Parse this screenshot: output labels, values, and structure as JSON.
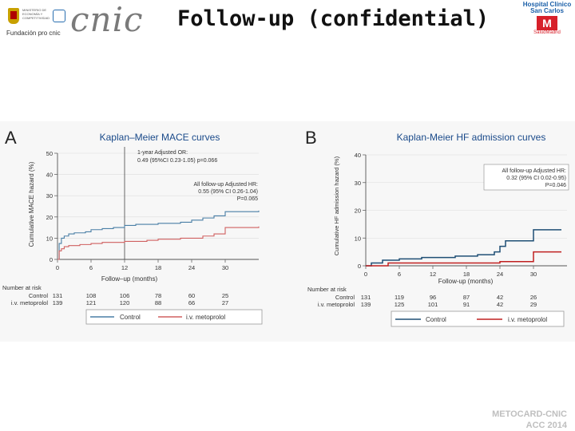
{
  "header": {
    "title": "Follow-up (confidential)",
    "cnic_logo": "cnic",
    "fundacion": "Fundación pro cnic",
    "ministerio": "MINISTERIO DE ECONOMÍA Y COMPETITIVIDAD",
    "hospital_line1": "Hospital Clínico",
    "hospital_line2": "San Carlos",
    "hospital_sub": "SaludMadrid"
  },
  "footer": {
    "line1": "METOCARD-CNIC",
    "line2": "ACC 2014"
  },
  "colors": {
    "control_A": "#4a7fa6",
    "metoprolol_A": "#d06060",
    "control_B": "#1f4f75",
    "metoprolol_B": "#c02020",
    "title_blue": "#1a4a8a",
    "grid": "#dcdcdc"
  },
  "chart_data": [
    {
      "type": "line",
      "panel_letter": "A",
      "title": "Kaplan–Meier MACE curves",
      "xlabel": "Follow–up (months)",
      "ylabel": "Cumulative MACE hazard (%)",
      "xlim": [
        0,
        36
      ],
      "ylim": [
        0,
        50
      ],
      "xticks": [
        0,
        6,
        12,
        18,
        24,
        30
      ],
      "yticks": [
        0,
        10,
        20,
        30,
        40,
        50
      ],
      "series": [
        {
          "name": "Control",
          "x": [
            0,
            0.3,
            0.7,
            1.2,
            2,
            3,
            5,
            6,
            8,
            10,
            12,
            14,
            18,
            22,
            24,
            26,
            28,
            30,
            36
          ],
          "y": [
            0,
            7.5,
            10,
            11,
            12,
            12.5,
            13,
            14,
            14.5,
            15,
            16,
            16.5,
            17,
            17.5,
            18.5,
            19.5,
            20.5,
            22.5,
            23
          ]
        },
        {
          "name": "i.v. metoprolol",
          "x": [
            0,
            0.3,
            0.7,
            1.2,
            2,
            4,
            6,
            8,
            12,
            16,
            18,
            22,
            26,
            28,
            30,
            36
          ],
          "y": [
            0,
            4,
            5,
            6,
            6.5,
            7,
            7.5,
            8,
            8.5,
            9,
            9.5,
            10,
            11,
            12,
            15,
            15.5
          ]
        }
      ],
      "annotations": [
        {
          "lines": [
            "1-year Adjusted OR:",
            "0.49 (95%CI 0.23-1.05) p=0.066"
          ]
        },
        {
          "lines": [
            "All follow-up Adjusted HR:",
            "0.55 (95% CI 0.26-1.04)",
            "P=0.065"
          ]
        }
      ],
      "vline_x": 12,
      "risk_table": {
        "header": "Number at risk",
        "rows": [
          {
            "label": "Control",
            "values": [
              "131",
              "108",
              "106",
              "78",
              "60",
              "25"
            ]
          },
          {
            "label": "i.v. metoprolol",
            "values": [
              "139",
              "121",
              "120",
              "88",
              "66",
              "27"
            ]
          }
        ]
      },
      "legend": [
        "Control",
        "i.v. metoprolol"
      ]
    },
    {
      "type": "line",
      "panel_letter": "B",
      "title": "Kaplan-Meier HF admission curves",
      "xlabel": "Follow-up (months)",
      "ylabel": "Cumulative HF admission hazard (%)",
      "xlim": [
        0,
        36
      ],
      "ylim": [
        0,
        40
      ],
      "xticks": [
        0,
        6,
        12,
        18,
        24,
        30
      ],
      "yticks": [
        0,
        10,
        20,
        30,
        40
      ],
      "series": [
        {
          "name": "Control",
          "x": [
            0,
            1,
            3,
            6,
            10,
            16,
            20,
            23,
            24,
            25,
            30,
            35
          ],
          "y": [
            0,
            1,
            2,
            2.5,
            3,
            3.5,
            4,
            5,
            7,
            9,
            13,
            13
          ]
        },
        {
          "name": "i.v. metoprolol",
          "x": [
            0,
            4,
            24,
            30,
            35
          ],
          "y": [
            0,
            1,
            1.5,
            5,
            5
          ]
        }
      ],
      "annotations": [
        {
          "lines": [
            "All follow-up Adjusted HR:",
            "0.32 (95% CI 0.02-0.95)",
            "P=0.046"
          ]
        }
      ],
      "risk_table": {
        "header": "Number at risk",
        "rows": [
          {
            "label": "Control",
            "values": [
              "131",
              "119",
              "96",
              "87",
              "42",
              "26"
            ]
          },
          {
            "label": "i.v. metoprolol",
            "values": [
              "139",
              "125",
              "101",
              "91",
              "42",
              "29"
            ]
          }
        ]
      },
      "legend": [
        "Control",
        "i.v. metoprolol"
      ]
    }
  ]
}
